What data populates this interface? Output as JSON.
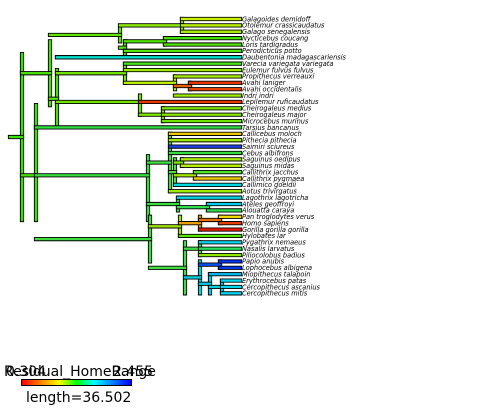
{
  "tips": [
    "Galagoides demidoff",
    "Otolemur crassicaudatus",
    "Galago senegalensis",
    "Nycticebus coucang",
    "Loris tardigradus",
    "Perodicticus potto",
    "Daubentonia madagascariensis",
    "Varecia variegata variegata",
    "Eulemur fulvus fulvus",
    "Propithecus verreauxi",
    "Avahi laniger",
    "Avahi occidentalis",
    "Indri indri",
    "Lepilemur ruficaudatus",
    "Cheirogaleus medius",
    "Cheirogaleus major",
    "Microcebus murinus",
    "Tarsius bancanus",
    "Callicebus moloch",
    "Pithecia pithecia",
    "Saimiri sciureus",
    "Cebus albifrons",
    "Saguinus oedipus",
    "Saguinus midas",
    "Callithrix jacchus",
    "Callithrix pygmaea",
    "Callimico goeldii",
    "Aotus trivirgatus",
    "Lagothrix lagotricha",
    "Ateles geoffroyi",
    "Alouatta caraya",
    "Pan troglodytes verus",
    "Homo sapiens",
    "Gorilla gorilla gorilla",
    "Hylobates lar",
    "Pygathrix nemaeus",
    "Nasalis larvatus",
    "Piliocolobus badius",
    "Papio anubis",
    "Lophocebus albigena",
    "Miopithecus talapoin",
    "Erythrocebus patas",
    "Cercopithecus ascanius",
    "Cercopithecus mitis"
  ],
  "tip_colors": [
    "#c8f000",
    "#b8ee00",
    "#a8ec00",
    "#44e000",
    "#50e400",
    "#58e40c",
    "#00e4d0",
    "#48e218",
    "#9cec00",
    "#a8ec00",
    "#e83800",
    "#e84400",
    "#9cec00",
    "#e83800",
    "#7ce600",
    "#88e800",
    "#6ce400",
    "#30dc40",
    "#f0c800",
    "#a0ec00",
    "#2040e8",
    "#38dc40",
    "#a8ec00",
    "#b8ee00",
    "#50e428",
    "#f0c800",
    "#00d8e0",
    "#a0ec00",
    "#00d8ec",
    "#00d0f0",
    "#30dc50",
    "#f0dc00",
    "#e84000",
    "#e81800",
    "#58e400",
    "#00d4ec",
    "#28dc60",
    "#90ea00",
    "#0030f0",
    "#0038e8",
    "#00b8f0",
    "#00d8f0",
    "#00d8f0",
    "#00d4f0"
  ],
  "legend": {
    "title": "Residual_HomeRange",
    "min_label": "0.304",
    "max_label": "2.455",
    "length_label": "length=36.502"
  }
}
